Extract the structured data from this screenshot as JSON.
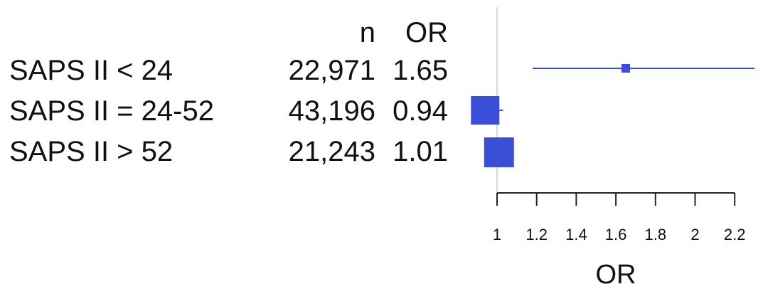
{
  "header": {
    "n_label": "n",
    "or_label": "OR"
  },
  "rows": [
    {
      "label": "SAPS II < 24",
      "n": "22,971",
      "or": "1.65"
    },
    {
      "label": "SAPS II = 24-52",
      "n": "43,196",
      "or": "0.94"
    },
    {
      "label": "SAPS II > 52",
      "n": "21,243",
      "or": "1.01"
    }
  ],
  "chart_data": {
    "type": "forest",
    "title": "",
    "xlabel": "OR",
    "ylabel": "",
    "xlim": [
      0.97,
      2.3
    ],
    "reference_line": 1,
    "xticks": [
      1,
      1.2,
      1.4,
      1.6,
      1.8,
      2,
      2.2
    ],
    "xtick_labels": [
      "1",
      "1.2",
      "1.4",
      "1.6",
      "1.8",
      "2",
      "2.2"
    ],
    "categories": [
      "SAPS II < 24",
      "SAPS II = 24-52",
      "SAPS II > 52"
    ],
    "series": [
      {
        "point": [
          1.65,
          0.94,
          1.01
        ],
        "ci_low": [
          1.18,
          0.92,
          0.98
        ],
        "ci_high": [
          2.3,
          1.03,
          1.07
        ],
        "n": [
          22971,
          43196,
          21243
        ]
      }
    ],
    "colors": {
      "marker": "#3a4fd6",
      "ci_line": "#3a4fd6",
      "axis": "#222222",
      "reference": "#cccccc"
    }
  }
}
